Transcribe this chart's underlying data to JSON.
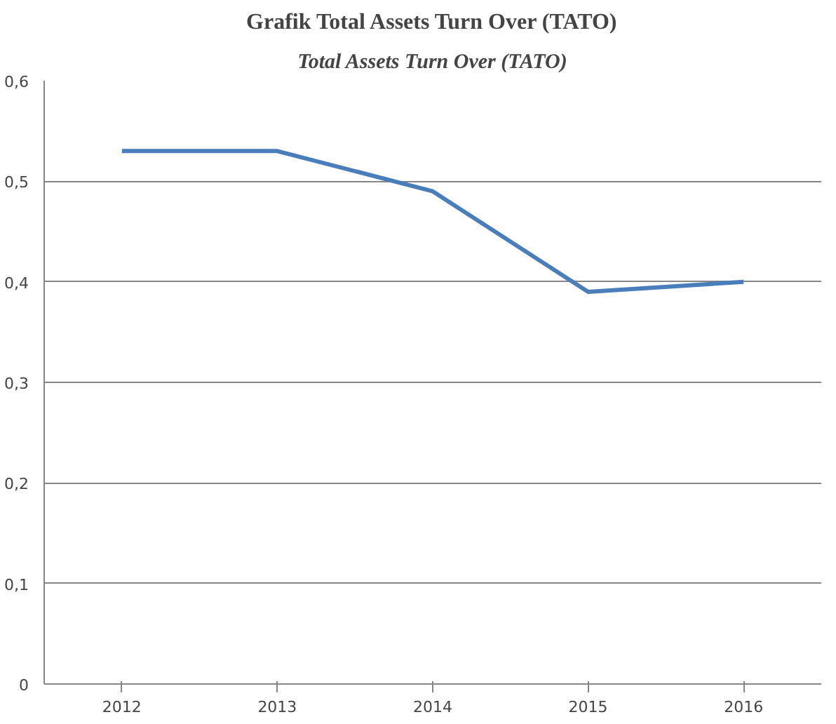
{
  "chart_data": {
    "type": "line",
    "title": "Grafik Total Assets Turn Over (TATO)",
    "subtitle": "Total Assets Turn Over (TATO)",
    "categories": [
      "2012",
      "2013",
      "2014",
      "2015",
      "2016"
    ],
    "series": [
      {
        "color": "#4a7ebb",
        "values": [
          0.53,
          0.53,
          0.49,
          0.39,
          0.4
        ]
      }
    ],
    "ylim": [
      0,
      0.6
    ],
    "yticks": [
      0,
      {
        "value": 0.1,
        "label": "0,1"
      },
      {
        "value": 0.2,
        "label": "0,2"
      },
      {
        "value": 0.3,
        "label": "0,3"
      },
      {
        "value": 0.4,
        "label": "0,4"
      },
      {
        "value": 0.5,
        "label": "0,5"
      },
      {
        "value": 0.6,
        "label": "0,6"
      }
    ],
    "grid": "y",
    "marker": "none",
    "line_style": "solid"
  }
}
